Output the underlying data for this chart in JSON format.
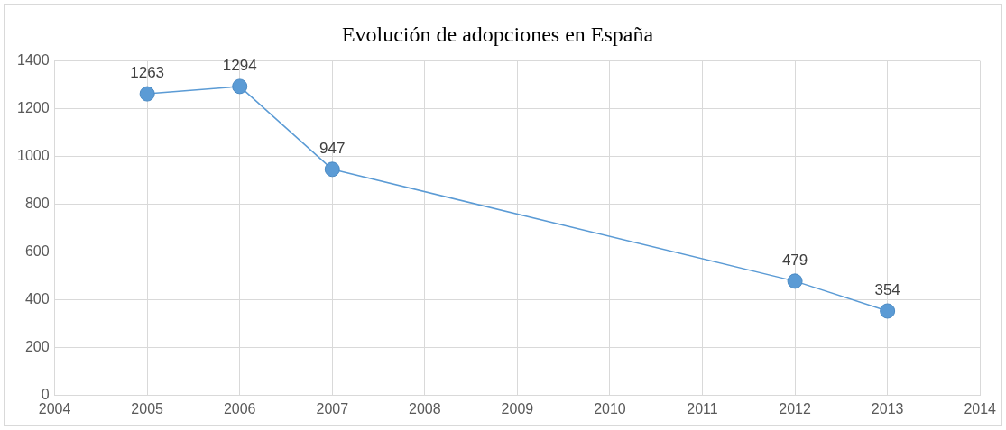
{
  "chart_data": {
    "type": "line",
    "title": "Evolución de adopciones en España",
    "x": [
      2005,
      2006,
      2007,
      2012,
      2013
    ],
    "series": [
      {
        "color": "#5b9bd5",
        "values": [
          1263,
          1294,
          947,
          479,
          354
        ]
      }
    ],
    "xlim": [
      2004,
      2014
    ],
    "xticks": [
      2004,
      2005,
      2006,
      2007,
      2008,
      2009,
      2010,
      2011,
      2012,
      2013,
      2014
    ],
    "ylim": [
      0,
      1400
    ],
    "yticks": [
      0,
      200,
      400,
      600,
      800,
      1000,
      1200,
      1400
    ],
    "grid": true,
    "marker": "circle",
    "data_labels": true
  }
}
